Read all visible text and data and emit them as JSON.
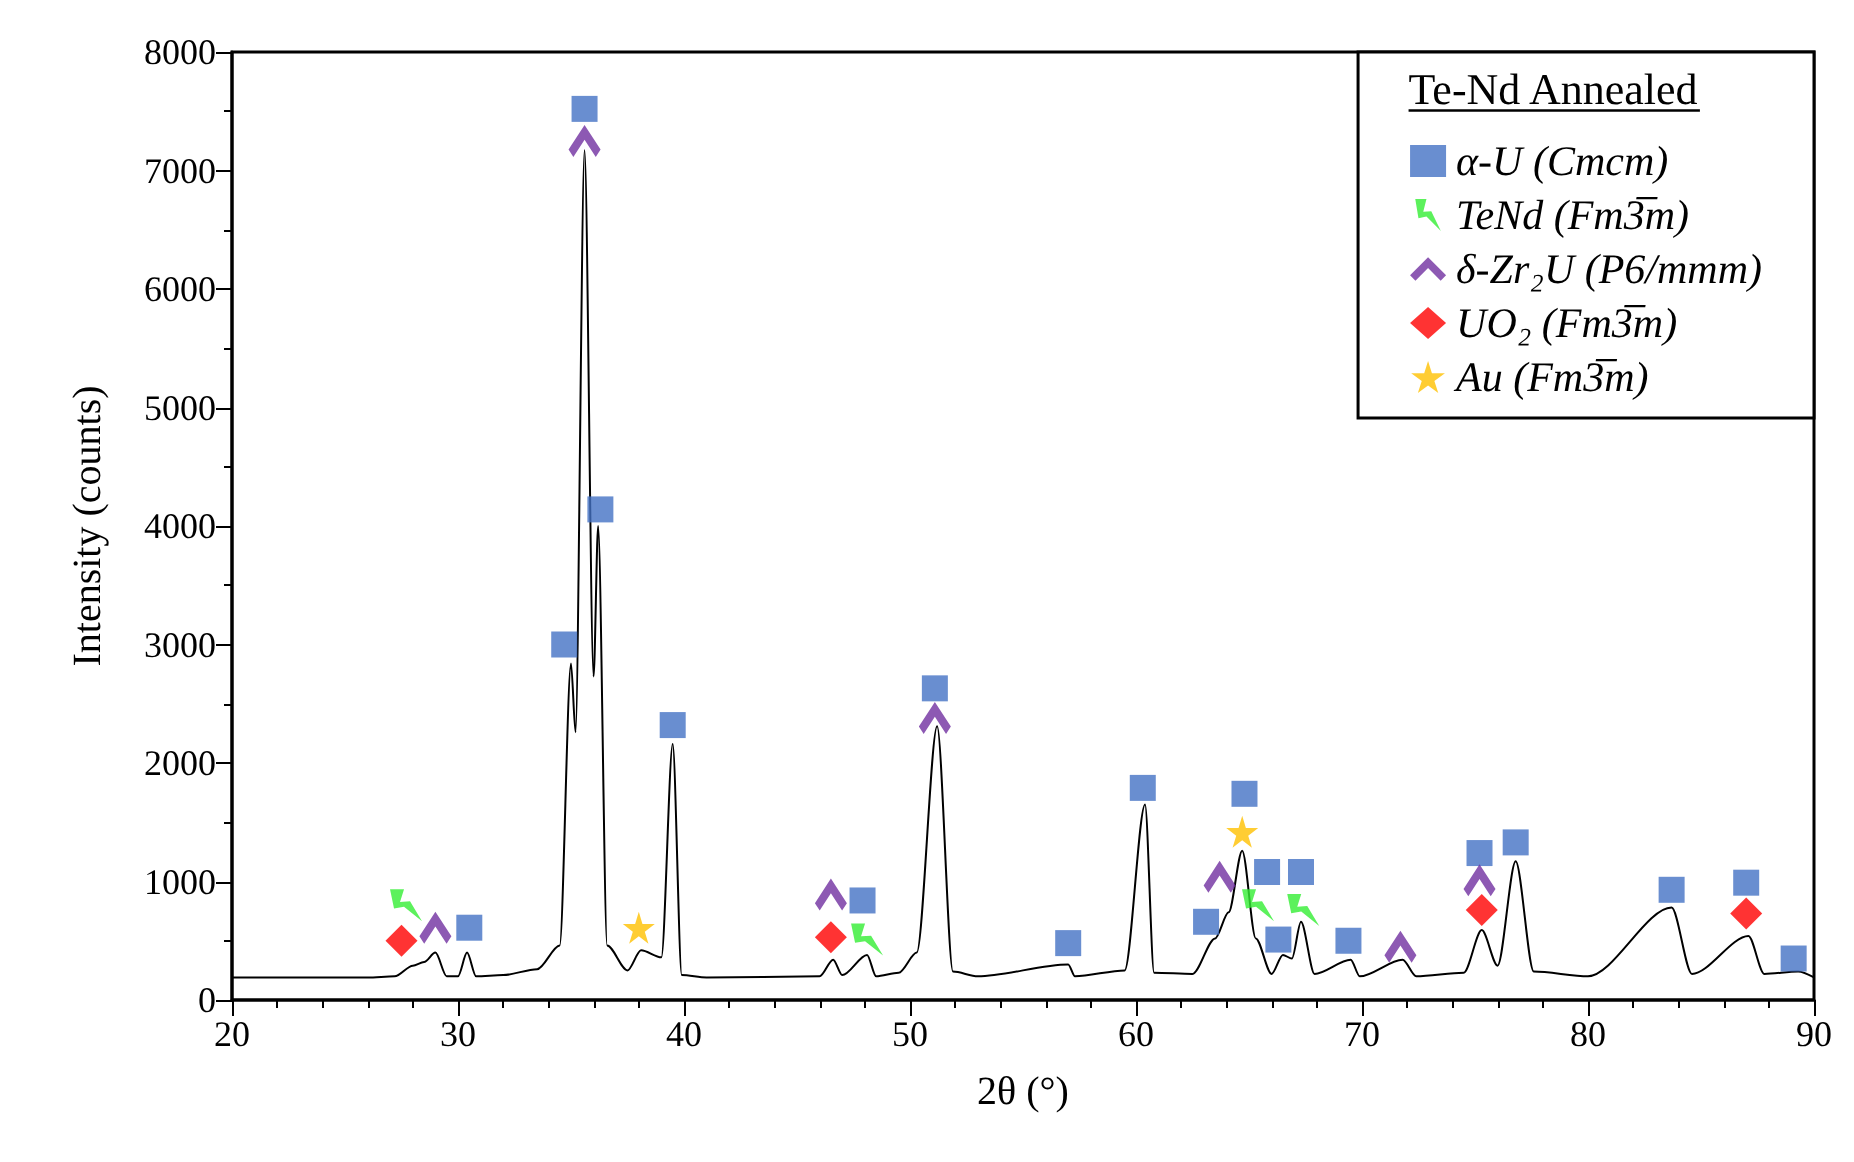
{
  "chart_data": {
    "type": "line",
    "xlabel": "2θ (°)",
    "ylabel": "Intensity (counts)",
    "legend_title": "Te-Nd Annealed",
    "xlim": [
      20,
      90
    ],
    "xticks": [
      20,
      30,
      40,
      50,
      60,
      70,
      80,
      90
    ],
    "ylim": [
      0,
      8000
    ],
    "yticks": [
      0,
      1000,
      2000,
      3000,
      4000,
      5000,
      6000,
      7000,
      8000
    ],
    "grid": false,
    "legend": "top right",
    "series": [
      {
        "color": "#000000",
        "marker": "none",
        "x": [
          20,
          26,
          27.2,
          28,
          28.5,
          29,
          29.5,
          30,
          30.4,
          30.8,
          32,
          33.5,
          34.5,
          35,
          35.2,
          35.6,
          36,
          36.2,
          36.6,
          37.5,
          38.1,
          39,
          39.5,
          39.9,
          41,
          46,
          46.6,
          47,
          48.1,
          48.5,
          49.5,
          50.3,
          51.2,
          51.9,
          53,
          57,
          57.3,
          59.5,
          60.4,
          60.8,
          62.5,
          63.5,
          64.1,
          64.7,
          65.3,
          66,
          66.5,
          66.9,
          67.3,
          67.9,
          69.5,
          69.9,
          71.8,
          72.4,
          74.5,
          75.3,
          76,
          76.8,
          77.6,
          80,
          83.7,
          84.6,
          87.1,
          87.8,
          89.3,
          90
        ],
        "values": [
          190,
          190,
          200,
          290,
          320,
          400,
          200,
          200,
          400,
          200,
          210,
          260,
          460,
          2840,
          2260,
          7170,
          2730,
          4000,
          460,
          250,
          420,
          360,
          2160,
          210,
          190,
          200,
          340,
          210,
          380,
          200,
          230,
          400,
          2310,
          240,
          200,
          300,
          200,
          250,
          1650,
          230,
          220,
          520,
          740,
          1260,
          520,
          220,
          380,
          350,
          660,
          220,
          340,
          200,
          340,
          200,
          230,
          590,
          290,
          1170,
          240,
          200,
          780,
          220,
          540,
          220,
          240,
          190
        ]
      },
      {
        "type": "scatter",
        "name": "α-U (Cmcm)",
        "color": "#4472c4",
        "marker": "square",
        "x": [
          30.5,
          34.7,
          35.6,
          36.3,
          39.5,
          47.9,
          51.1,
          57.0,
          60.3,
          63.1,
          64.8,
          65.8,
          66.3,
          67.3,
          69.4,
          75.2,
          76.8,
          83.7,
          87.0,
          89.1
        ],
        "values": [
          610,
          3000,
          7520,
          4140,
          2320,
          840,
          2630,
          480,
          1790,
          660,
          1740,
          1080,
          510,
          1080,
          500,
          1240,
          1330,
          930,
          990,
          350
        ]
      },
      {
        "type": "scatter",
        "name": "TeNd (Fm3̅m)",
        "color": "#33ee33",
        "marker": "cross",
        "x": [
          27.7,
          48.1,
          65.4,
          67.4
        ],
        "values": [
          800,
          510,
          800,
          760
        ]
      },
      {
        "type": "scatter",
        "name": "δ-Zr₂U (P6/mmm)",
        "color": "#7030a0",
        "marker": "triangle",
        "x": [
          29.0,
          35.6,
          46.5,
          51.1,
          63.7,
          71.7,
          75.2
        ],
        "values": [
          610,
          7250,
          890,
          2380,
          1040,
          450,
          1010
        ]
      },
      {
        "type": "scatter",
        "name": "UO₂ (Fm3̅m)",
        "color": "#ff0000",
        "marker": "diamond",
        "x": [
          27.5,
          46.5,
          75.3,
          87.0
        ],
        "values": [
          500,
          530,
          760,
          730
        ]
      },
      {
        "type": "scatter",
        "name": "Au (Fm3̅m)",
        "color": "#ffc000",
        "marker": "star",
        "x": [
          38.0,
          64.7
        ],
        "values": [
          610,
          1420
        ]
      }
    ]
  }
}
